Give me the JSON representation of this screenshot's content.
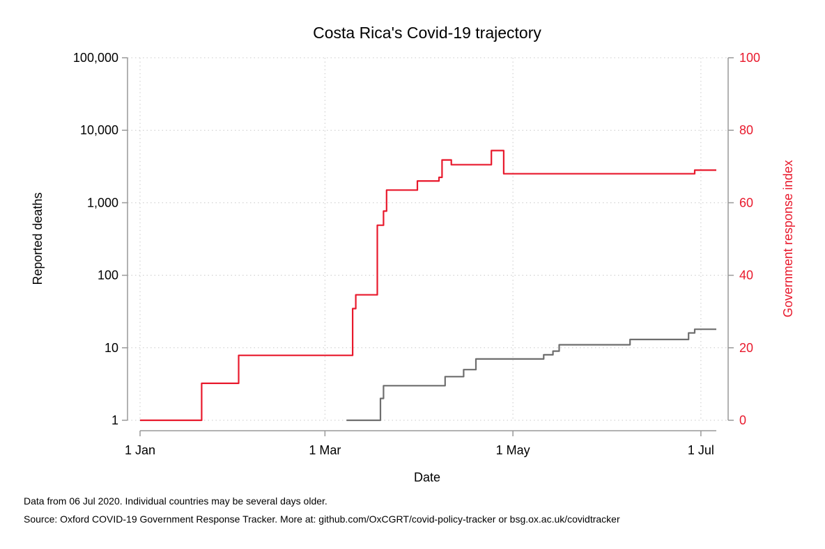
{
  "chart_data": {
    "type": "line",
    "title": "Costa Rica's Covid-19 trajectory",
    "xlabel": "Date",
    "ylabel_left": "Reported deaths",
    "ylabel_right": "Government response index",
    "x_axis": {
      "start": "2020-01-01",
      "end": "2020-07-06",
      "ticks": [
        {
          "label": "1 Jan",
          "date": "2020-01-01"
        },
        {
          "label": "1 Mar",
          "date": "2020-03-01"
        },
        {
          "label": "1 May",
          "date": "2020-05-01"
        },
        {
          "label": "1 Jul",
          "date": "2020-07-01"
        }
      ]
    },
    "y_left": {
      "scale": "log",
      "range": [
        1,
        100000
      ],
      "ticks": [
        "1",
        "10",
        "100",
        "1,000",
        "10,000",
        "100,000"
      ],
      "tick_values": [
        1,
        10,
        100,
        1000,
        10000,
        100000
      ]
    },
    "y_right": {
      "scale": "linear",
      "range": [
        0,
        100
      ],
      "ticks": [
        "0",
        "20",
        "40",
        "60",
        "80",
        "100"
      ],
      "tick_values": [
        0,
        20,
        40,
        60,
        80,
        100
      ]
    },
    "grid": true,
    "series": [
      {
        "axis": "right",
        "color": "#e8192c",
        "points": [
          [
            "2020-01-01",
            0
          ],
          [
            "2020-01-21",
            0
          ],
          [
            "2020-01-21",
            10.2
          ],
          [
            "2020-02-02",
            10.2
          ],
          [
            "2020-02-02",
            17.9
          ],
          [
            "2020-03-10",
            17.9
          ],
          [
            "2020-03-10",
            30.8
          ],
          [
            "2020-03-11",
            30.8
          ],
          [
            "2020-03-11",
            34.6
          ],
          [
            "2020-03-18",
            34.6
          ],
          [
            "2020-03-18",
            53.8
          ],
          [
            "2020-03-20",
            53.8
          ],
          [
            "2020-03-20",
            57.7
          ],
          [
            "2020-03-21",
            57.7
          ],
          [
            "2020-03-21",
            63.5
          ],
          [
            "2020-03-31",
            63.5
          ],
          [
            "2020-03-31",
            66.0
          ],
          [
            "2020-04-07",
            66.0
          ],
          [
            "2020-04-07",
            67.0
          ],
          [
            "2020-04-08",
            67.0
          ],
          [
            "2020-04-08",
            71.8
          ],
          [
            "2020-04-11",
            71.8
          ],
          [
            "2020-04-11",
            70.5
          ],
          [
            "2020-04-24",
            70.5
          ],
          [
            "2020-04-24",
            74.4
          ],
          [
            "2020-04-28",
            74.4
          ],
          [
            "2020-04-28",
            68.0
          ],
          [
            "2020-06-29",
            68.0
          ],
          [
            "2020-06-29",
            69.0
          ],
          [
            "2020-07-06",
            69.0
          ]
        ]
      },
      {
        "axis": "left",
        "color": "#6e6e6e",
        "points": [
          [
            "2020-03-08",
            1
          ],
          [
            "2020-03-19",
            1
          ],
          [
            "2020-03-19",
            2
          ],
          [
            "2020-03-20",
            2
          ],
          [
            "2020-03-20",
            3
          ],
          [
            "2020-04-09",
            3
          ],
          [
            "2020-04-09",
            4
          ],
          [
            "2020-04-15",
            4
          ],
          [
            "2020-04-15",
            5
          ],
          [
            "2020-04-19",
            5
          ],
          [
            "2020-04-19",
            7
          ],
          [
            "2020-05-11",
            7
          ],
          [
            "2020-05-11",
            8
          ],
          [
            "2020-05-14",
            8
          ],
          [
            "2020-05-14",
            9
          ],
          [
            "2020-05-16",
            9
          ],
          [
            "2020-05-16",
            11
          ],
          [
            "2020-06-08",
            11
          ],
          [
            "2020-06-08",
            13
          ],
          [
            "2020-06-27",
            13
          ],
          [
            "2020-06-27",
            16
          ],
          [
            "2020-06-29",
            16
          ],
          [
            "2020-06-29",
            18
          ],
          [
            "2020-07-06",
            18
          ]
        ]
      }
    ]
  },
  "notes": {
    "line1": "Data from 06 Jul 2020. Individual countries may be several days older.",
    "line2": "Source: Oxford COVID-19 Government Response Tracker. More at: github.com/OxCGRT/covid-policy-tracker or bsg.ox.ac.uk/covidtracker"
  }
}
